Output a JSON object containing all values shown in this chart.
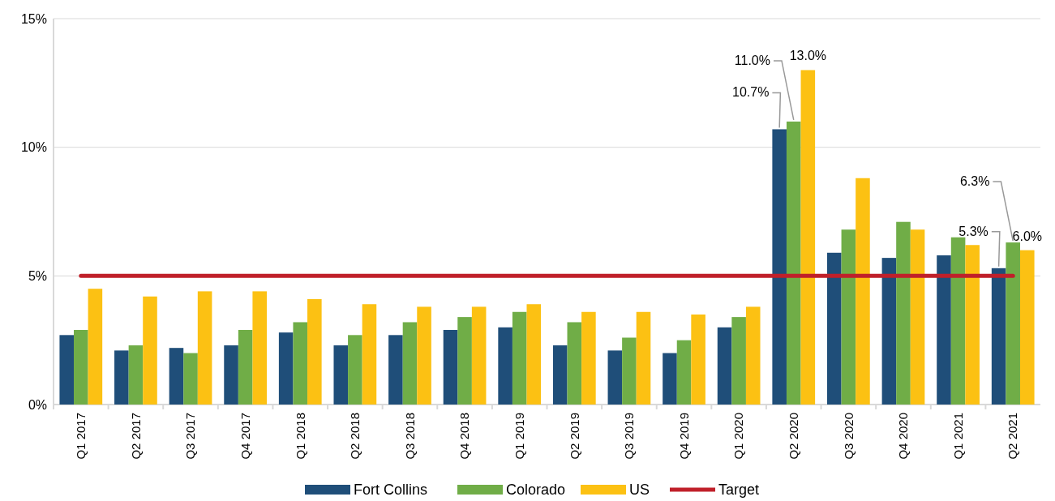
{
  "chart_data": {
    "type": "bar",
    "categories": [
      "Q1 2017",
      "Q2 2017",
      "Q3 2017",
      "Q4 2017",
      "Q1 2018",
      "Q2 2018",
      "Q3 2018",
      "Q4 2018",
      "Q1 2019",
      "Q2 2019",
      "Q3 2019",
      "Q4 2019",
      "Q1 2020",
      "Q2 2020",
      "Q3 2020",
      "Q4 2020",
      "Q1 2021",
      "Q2 2021"
    ],
    "series": [
      {
        "name": "Fort Collins",
        "color": "#1f4e79",
        "values": [
          2.7,
          2.1,
          2.2,
          2.3,
          2.8,
          2.3,
          2.7,
          2.9,
          3.0,
          2.3,
          2.1,
          2.0,
          3.0,
          10.7,
          5.9,
          5.7,
          5.8,
          5.3
        ],
        "value_labels": [
          null,
          null,
          null,
          null,
          null,
          null,
          null,
          null,
          null,
          null,
          null,
          null,
          null,
          "10.7%",
          null,
          null,
          null,
          "5.3%"
        ]
      },
      {
        "name": "Colorado",
        "color": "#70ad47",
        "values": [
          2.9,
          2.3,
          2.0,
          2.9,
          3.2,
          2.7,
          3.2,
          3.4,
          3.6,
          3.2,
          2.6,
          2.5,
          3.4,
          11.0,
          6.8,
          7.1,
          6.5,
          6.3
        ],
        "value_labels": [
          null,
          null,
          null,
          null,
          null,
          null,
          null,
          null,
          null,
          null,
          null,
          null,
          null,
          "11.0%",
          null,
          null,
          null,
          "6.3%"
        ]
      },
      {
        "name": "US",
        "color": "#fcc113",
        "values": [
          4.5,
          4.2,
          4.4,
          4.4,
          4.1,
          3.9,
          3.8,
          3.8,
          3.9,
          3.6,
          3.6,
          3.5,
          3.8,
          13.0,
          8.8,
          6.8,
          6.2,
          6.0
        ],
        "value_labels": [
          null,
          null,
          null,
          null,
          null,
          null,
          null,
          null,
          null,
          null,
          null,
          null,
          null,
          "13.0%",
          null,
          null,
          null,
          "6.0%"
        ]
      },
      {
        "name": "Target",
        "type": "line",
        "color": "#c0202a",
        "values": [
          5,
          5,
          5,
          5,
          5,
          5,
          5,
          5,
          5,
          5,
          5,
          5,
          5,
          5,
          5,
          5,
          5,
          5
        ]
      }
    ],
    "ylim": [
      0,
      15
    ],
    "yticks": [
      {
        "value": 0,
        "label": "0%"
      },
      {
        "value": 5,
        "label": "5%"
      },
      {
        "value": 10,
        "label": "10%"
      },
      {
        "value": 15,
        "label": "15%"
      }
    ],
    "grid": "y",
    "legend": "bottom"
  }
}
